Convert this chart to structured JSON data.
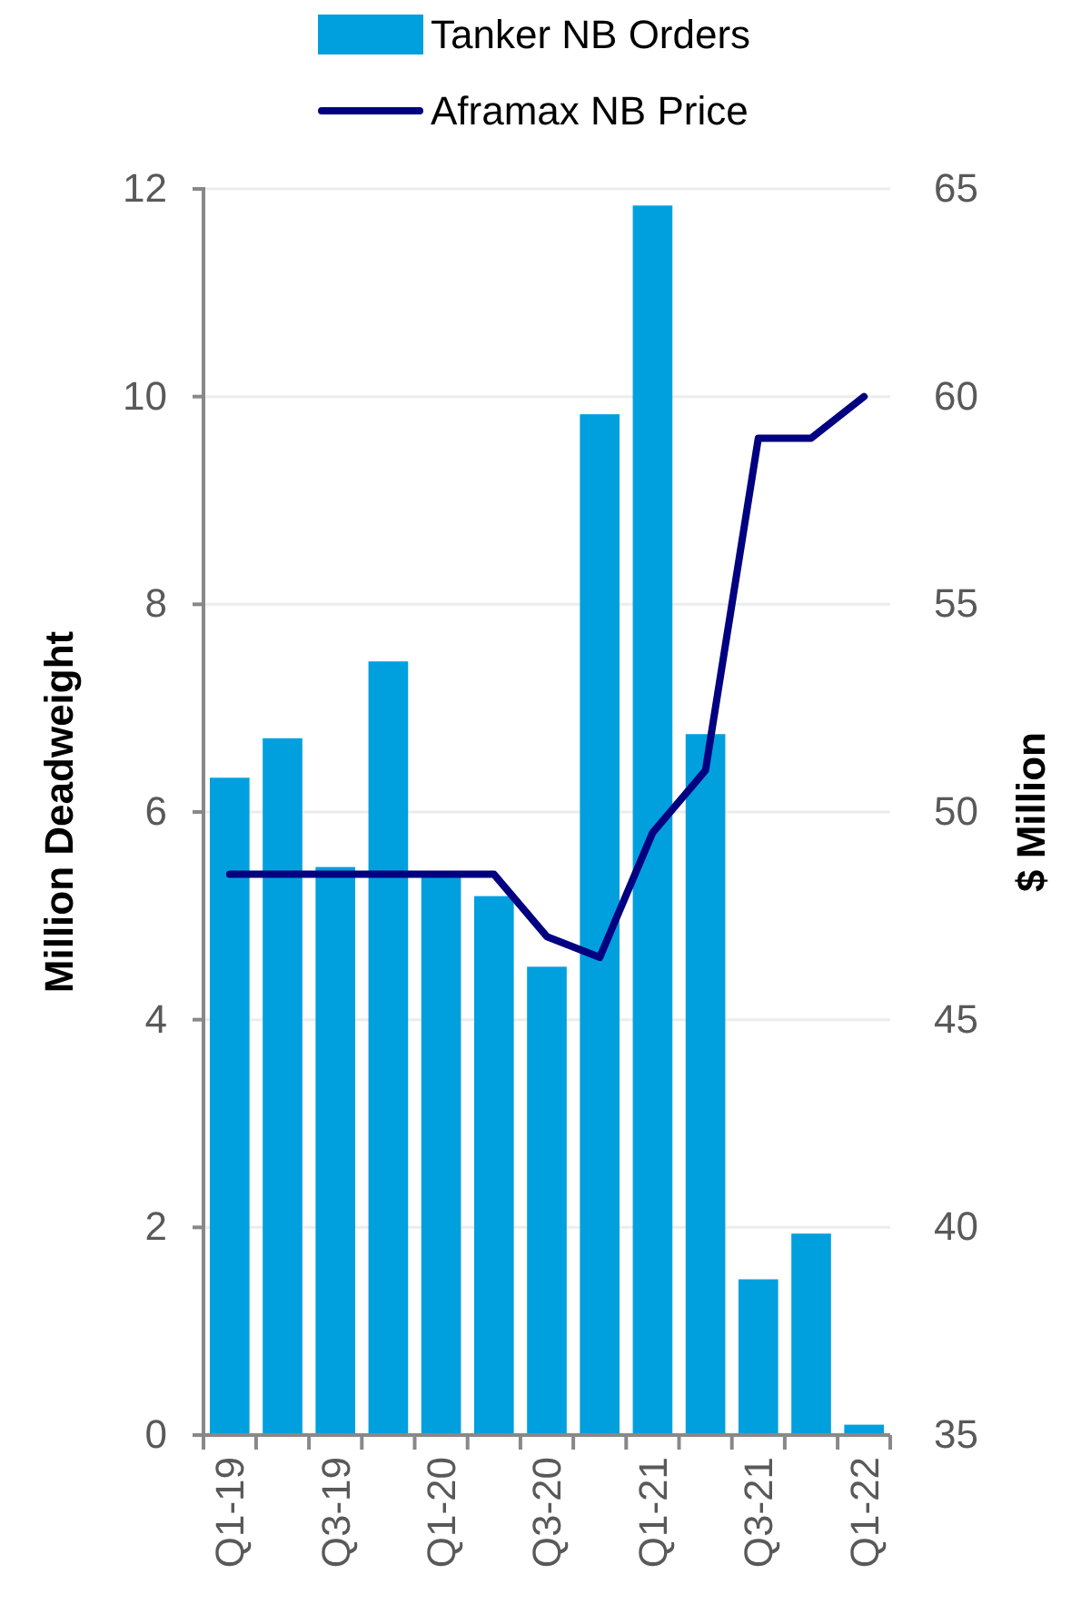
{
  "chart_data": {
    "type": "bar",
    "ylabel": "Million Deadweight",
    "y2label": "$ Million",
    "categories": [
      "Q1-19",
      null,
      "Q3-19",
      null,
      "Q1-20",
      null,
      "Q3-20",
      null,
      "Q1-21",
      null,
      "Q3-21",
      null,
      "Q1-22"
    ],
    "series": [
      {
        "name": "Tanker NB Orders",
        "color": "#00a0de",
        "values": [
          6.33,
          6.71,
          5.47,
          7.45,
          5.4,
          5.19,
          4.51,
          9.83,
          11.84,
          6.75,
          1.5,
          1.94,
          0.1
        ]
      },
      {
        "name": "Aframax NB Price",
        "type": "line",
        "axis": "y2",
        "color": "#000080",
        "values": [
          48.5,
          48.5,
          48.5,
          48.5,
          48.5,
          48.5,
          47.0,
          46.5,
          49.5,
          51.0,
          59.0,
          59.0,
          60.0
        ]
      }
    ],
    "ylim": [
      0,
      12
    ],
    "yticks": [
      0,
      2,
      4,
      6,
      8,
      10,
      12
    ],
    "y2lim": [
      35,
      65
    ],
    "y2ticks": [
      35,
      40,
      45,
      50,
      55,
      60,
      65
    ],
    "grid": "y",
    "legend": "top",
    "marker": "none",
    "line_style": "solid"
  }
}
